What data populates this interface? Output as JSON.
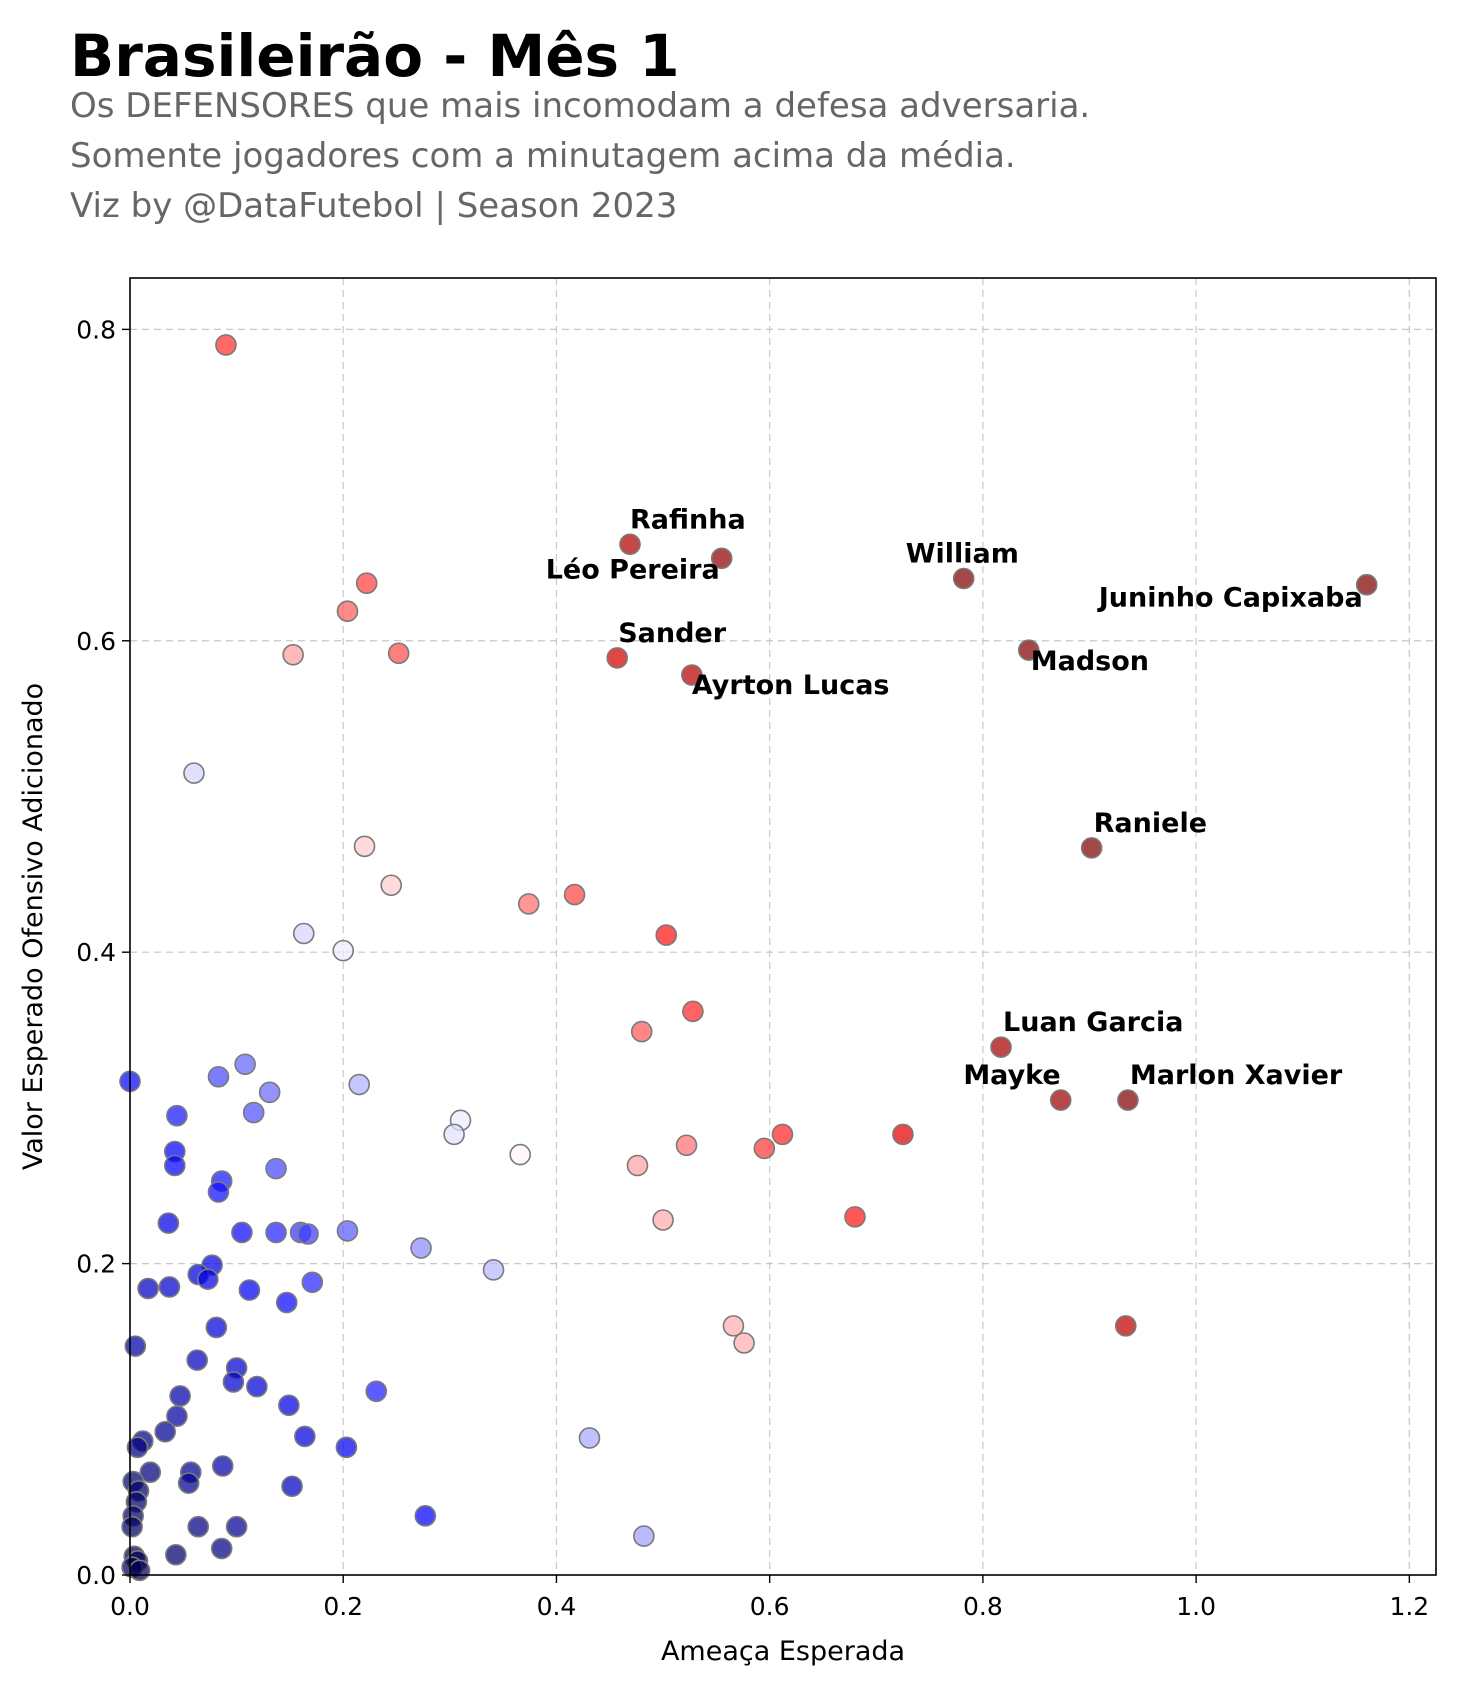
{
  "header": {
    "title": "Brasileirão - Mês 1",
    "subtitle_1": "Os DEFENSORES que mais incomodam a defesa adversaria.",
    "subtitle_2": "Somente jogadores com a minutagem acima da média.",
    "subtitle_3": "Viz by @DataFutebol | Season 2023"
  },
  "chart_data": {
    "type": "scatter",
    "title": "Brasileirão - Mês 1",
    "xlabel": "Ameaça Esperada",
    "ylabel": "Valor Esperado Ofensivo Adicionado",
    "xlim": [
      0.0,
      1.225
    ],
    "ylim": [
      0.0,
      0.833
    ],
    "xticks": [
      "0.0",
      "0.2",
      "0.4",
      "0.6",
      "0.8",
      "1.0",
      "1.2"
    ],
    "yticks": [
      "0.0",
      "0.2",
      "0.4",
      "0.6",
      "0.8"
    ],
    "grid": true,
    "colormap": "seismic",
    "color_scale": [
      0.0,
      1.25
    ],
    "labeled_points": [
      {
        "name": "Juninho Capixaba",
        "x": 1.16,
        "y": 0.636
      },
      {
        "name": "William",
        "x": 0.782,
        "y": 0.64
      },
      {
        "name": "Rafinha",
        "x": 0.469,
        "y": 0.662
      },
      {
        "name": "Léo Pereira",
        "x": 0.555,
        "y": 0.653
      },
      {
        "name": "Sander",
        "x": 0.457,
        "y": 0.589
      },
      {
        "name": "Ayrton Lucas",
        "x": 0.527,
        "y": 0.578
      },
      {
        "name": "Madson",
        "x": 0.843,
        "y": 0.594
      },
      {
        "name": "Raniele",
        "x": 0.902,
        "y": 0.467
      },
      {
        "name": "Luan Garcia",
        "x": 0.817,
        "y": 0.339
      },
      {
        "name": "Mayke",
        "x": 0.873,
        "y": 0.305
      },
      {
        "name": "Marlon Xavier",
        "x": 0.936,
        "y": 0.305
      }
    ],
    "points": [
      {
        "x": 0.09,
        "y": 0.79
      },
      {
        "x": 0.222,
        "y": 0.637
      },
      {
        "x": 0.204,
        "y": 0.619
      },
      {
        "x": 0.153,
        "y": 0.591
      },
      {
        "x": 0.252,
        "y": 0.592
      },
      {
        "x": 0.06,
        "y": 0.515
      },
      {
        "x": 0.22,
        "y": 0.468
      },
      {
        "x": 0.245,
        "y": 0.443
      },
      {
        "x": 0.374,
        "y": 0.431
      },
      {
        "x": 0.417,
        "y": 0.437
      },
      {
        "x": 0.163,
        "y": 0.412
      },
      {
        "x": 0.2,
        "y": 0.401
      },
      {
        "x": 0.503,
        "y": 0.411
      },
      {
        "x": 0.528,
        "y": 0.362
      },
      {
        "x": 0.48,
        "y": 0.349
      },
      {
        "x": 0.934,
        "y": 0.16
      },
      {
        "x": 0.725,
        "y": 0.283
      },
      {
        "x": 0.612,
        "y": 0.283
      },
      {
        "x": 0.595,
        "y": 0.274
      },
      {
        "x": 0.522,
        "y": 0.276
      },
      {
        "x": 0.476,
        "y": 0.263
      },
      {
        "x": 0.68,
        "y": 0.23
      },
      {
        "x": 0.5,
        "y": 0.228
      },
      {
        "x": 0.566,
        "y": 0.16
      },
      {
        "x": 0.576,
        "y": 0.149
      },
      {
        "x": 0.366,
        "y": 0.27
      },
      {
        "x": 0.31,
        "y": 0.292
      },
      {
        "x": 0.304,
        "y": 0.283
      },
      {
        "x": 0.215,
        "y": 0.315
      },
      {
        "x": 0.108,
        "y": 0.328
      },
      {
        "x": 0.083,
        "y": 0.32
      },
      {
        "x": 0.131,
        "y": 0.31
      },
      {
        "x": 0.116,
        "y": 0.297
      },
      {
        "x": 0.044,
        "y": 0.295
      },
      {
        "x": 0.042,
        "y": 0.272
      },
      {
        "x": 0.042,
        "y": 0.263
      },
      {
        "x": 0.137,
        "y": 0.261
      },
      {
        "x": 0.086,
        "y": 0.253
      },
      {
        "x": 0.083,
        "y": 0.246
      },
      {
        "x": 0.036,
        "y": 0.226
      },
      {
        "x": 0.105,
        "y": 0.22
      },
      {
        "x": 0.137,
        "y": 0.22
      },
      {
        "x": 0.16,
        "y": 0.22
      },
      {
        "x": 0.167,
        "y": 0.219
      },
      {
        "x": 0.204,
        "y": 0.221
      },
      {
        "x": 0.273,
        "y": 0.21
      },
      {
        "x": 0.341,
        "y": 0.196
      },
      {
        "x": 0.077,
        "y": 0.199
      },
      {
        "x": 0.064,
        "y": 0.193
      },
      {
        "x": 0.073,
        "y": 0.19
      },
      {
        "x": 0.017,
        "y": 0.184
      },
      {
        "x": 0.037,
        "y": 0.185
      },
      {
        "x": 0.112,
        "y": 0.183
      },
      {
        "x": 0.171,
        "y": 0.188
      },
      {
        "x": 0.147,
        "y": 0.175
      },
      {
        "x": 0.081,
        "y": 0.159
      },
      {
        "x": 0.005,
        "y": 0.147
      },
      {
        "x": 0.063,
        "y": 0.138
      },
      {
        "x": 0.1,
        "y": 0.133
      },
      {
        "x": 0.097,
        "y": 0.124
      },
      {
        "x": 0.119,
        "y": 0.121
      },
      {
        "x": 0.047,
        "y": 0.115
      },
      {
        "x": 0.231,
        "y": 0.118
      },
      {
        "x": 0.149,
        "y": 0.109
      },
      {
        "x": 0.044,
        "y": 0.102
      },
      {
        "x": 0.033,
        "y": 0.092
      },
      {
        "x": 0.164,
        "y": 0.089
      },
      {
        "x": 0.431,
        "y": 0.088
      },
      {
        "x": 0.012,
        "y": 0.086
      },
      {
        "x": 0.007,
        "y": 0.082
      },
      {
        "x": 0.203,
        "y": 0.082
      },
      {
        "x": 0.087,
        "y": 0.07
      },
      {
        "x": 0.019,
        "y": 0.066
      },
      {
        "x": 0.057,
        "y": 0.066
      },
      {
        "x": 0.055,
        "y": 0.059
      },
      {
        "x": 0.003,
        "y": 0.06
      },
      {
        "x": 0.008,
        "y": 0.054
      },
      {
        "x": 0.152,
        "y": 0.057
      },
      {
        "x": 0.006,
        "y": 0.047
      },
      {
        "x": 0.003,
        "y": 0.038
      },
      {
        "x": 0.277,
        "y": 0.038
      },
      {
        "x": 0.002,
        "y": 0.031
      },
      {
        "x": 0.064,
        "y": 0.031
      },
      {
        "x": 0.1,
        "y": 0.031
      },
      {
        "x": 0.482,
        "y": 0.025
      },
      {
        "x": 0.086,
        "y": 0.017
      },
      {
        "x": 0.043,
        "y": 0.013
      },
      {
        "x": 0.004,
        "y": 0.012
      },
      {
        "x": 0.007,
        "y": 0.009
      },
      {
        "x": 0.002,
        "y": 0.005
      },
      {
        "x": 0.009,
        "y": 0.003
      },
      {
        "x": 0.0,
        "y": 0.317
      }
    ]
  }
}
